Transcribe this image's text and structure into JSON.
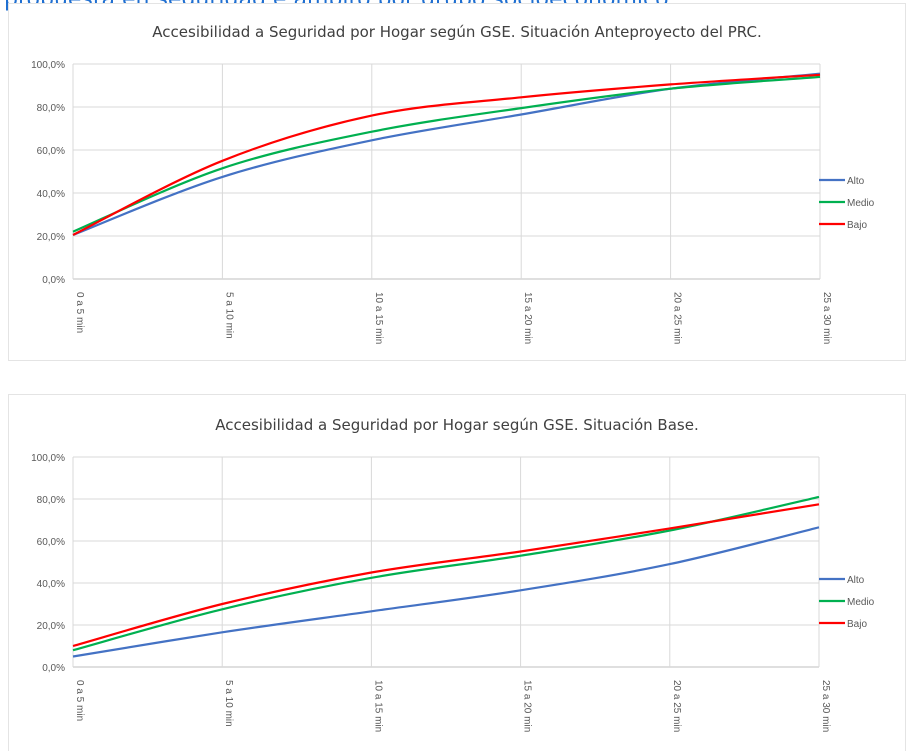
{
  "caption_text": "propuesta en seguridad e ámbito por grupo socioeconómico",
  "chart_data": [
    {
      "type": "line",
      "title": "Accesibilidad a Seguridad por Hogar según GSE. Situación Anteproyecto del PRC.",
      "xlabel": "",
      "ylabel": "",
      "categories": [
        "0 a 5 min",
        "5 a 10 min",
        "10 a 15 min",
        "15 a 20 min",
        "20 a 25 min",
        "25 a 30 min"
      ],
      "y_ticks": [
        "0,0%",
        "20,0%",
        "40,0%",
        "60,0%",
        "80,0%",
        "100,0%"
      ],
      "ylim": [
        0,
        100
      ],
      "grid": true,
      "legend_position": "right",
      "series": [
        {
          "name": "Alto",
          "color": "#4472c4",
          "values": [
            20.5,
            47.5,
            64.5,
            76.5,
            88.5,
            95.5
          ]
        },
        {
          "name": "Medio",
          "color": "#00b050",
          "values": [
            22,
            51.5,
            68.5,
            79.5,
            88.5,
            94
          ]
        },
        {
          "name": "Bajo",
          "color": "#ff0000",
          "values": [
            20.5,
            55,
            76,
            84.5,
            90.5,
            95
          ]
        }
      ]
    },
    {
      "type": "line",
      "title": "Accesibilidad a Seguridad por Hogar según GSE. Situación Base.",
      "xlabel": "",
      "ylabel": "",
      "categories": [
        "0 a 5 min",
        "5 a 10 min",
        "10 a 15 min",
        "15 a 20 min",
        "20 a 25 min",
        "25 a 30 min"
      ],
      "y_ticks": [
        "0,0%",
        "20,0%",
        "40,0%",
        "60,0%",
        "80,0%",
        "100,0%"
      ],
      "ylim": [
        0,
        100
      ],
      "grid": true,
      "legend_position": "right",
      "series": [
        {
          "name": "Alto",
          "color": "#4472c4",
          "values": [
            5,
            16.5,
            26.5,
            36.5,
            49,
            66.5
          ]
        },
        {
          "name": "Medio",
          "color": "#00b050",
          "values": [
            8,
            27.5,
            42.5,
            53,
            65,
            81
          ]
        },
        {
          "name": "Bajo",
          "color": "#ff0000",
          "values": [
            10,
            30,
            45,
            55,
            66,
            77.5
          ]
        }
      ]
    }
  ]
}
